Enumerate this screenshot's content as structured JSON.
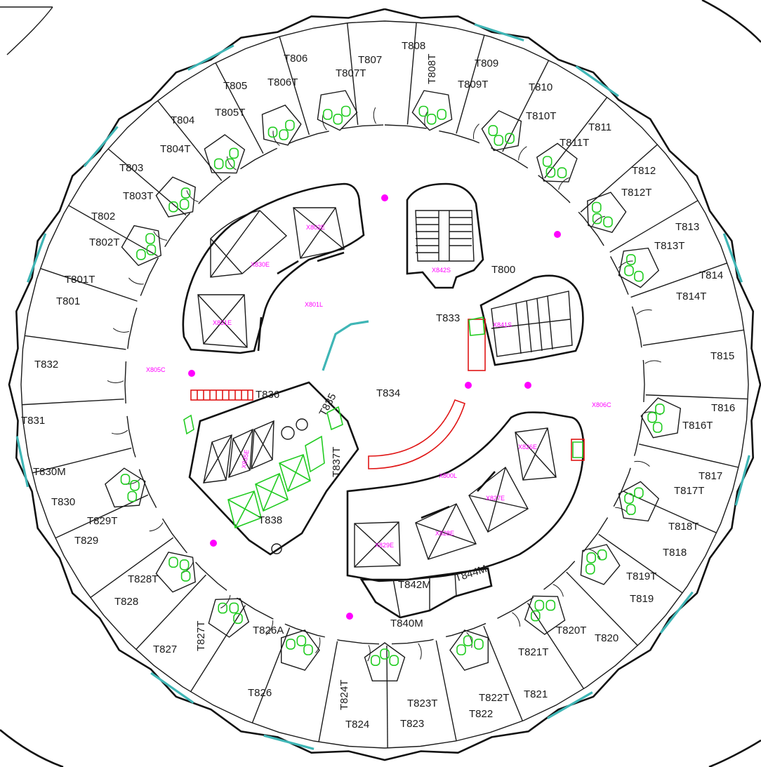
{
  "colors": {
    "wall": "#1a1a1a",
    "glass": "#3fb6b6",
    "fixture": "#22cc22",
    "accent": "#ff00ff",
    "red": "#e01515"
  },
  "rooms": {
    "outer": [
      {
        "label": "T801"
      },
      {
        "label": "T802"
      },
      {
        "label": "T803"
      },
      {
        "label": "T804"
      },
      {
        "label": "T805"
      },
      {
        "label": "T806"
      },
      {
        "label": "T807"
      },
      {
        "label": "T808"
      },
      {
        "label": "T809"
      },
      {
        "label": "T810"
      },
      {
        "label": "T811"
      },
      {
        "label": "T812"
      },
      {
        "label": "T813"
      },
      {
        "label": "T814"
      },
      {
        "label": "T815"
      },
      {
        "label": "T816"
      },
      {
        "label": "T817"
      },
      {
        "label": "T818"
      },
      {
        "label": "T819"
      },
      {
        "label": "T820"
      },
      {
        "label": "T821"
      },
      {
        "label": "T822"
      },
      {
        "label": "T823"
      },
      {
        "label": "T824"
      },
      {
        "label": "T826"
      },
      {
        "label": "T826A"
      },
      {
        "label": "T827"
      },
      {
        "label": "T828"
      },
      {
        "label": "T829"
      },
      {
        "label": "T830"
      },
      {
        "label": "T830M"
      },
      {
        "label": "T831"
      },
      {
        "label": "T832"
      }
    ],
    "toilets": [
      {
        "label": "T801T"
      },
      {
        "label": "T802T"
      },
      {
        "label": "T803T"
      },
      {
        "label": "T804T"
      },
      {
        "label": "T805T"
      },
      {
        "label": "T806T"
      },
      {
        "label": "T807T"
      },
      {
        "label": "T808T"
      },
      {
        "label": "T809T"
      },
      {
        "label": "T810T"
      },
      {
        "label": "T811T"
      },
      {
        "label": "T812T"
      },
      {
        "label": "T813T"
      },
      {
        "label": "T814T"
      },
      {
        "label": "T816T"
      },
      {
        "label": "T817T"
      },
      {
        "label": "T818T"
      },
      {
        "label": "T819T"
      },
      {
        "label": "T820T"
      },
      {
        "label": "T821T"
      },
      {
        "label": "T822T"
      },
      {
        "label": "T823T"
      },
      {
        "label": "T824T"
      },
      {
        "label": "T827T"
      },
      {
        "label": "T828T"
      },
      {
        "label": "T829T"
      }
    ],
    "core": [
      {
        "label": "T800"
      },
      {
        "label": "T833"
      },
      {
        "label": "T834"
      },
      {
        "label": "T835"
      },
      {
        "label": "T836"
      },
      {
        "label": "T837T"
      },
      {
        "label": "T838"
      },
      {
        "label": "T840M"
      },
      {
        "label": "T842M"
      },
      {
        "label": "T844M"
      }
    ],
    "codes": [
      {
        "label": "X802E"
      },
      {
        "label": "X830E"
      },
      {
        "label": "X801L"
      },
      {
        "label": "X831E"
      },
      {
        "label": "X842S"
      },
      {
        "label": "X841S"
      },
      {
        "label": "X805C"
      },
      {
        "label": "X806C"
      },
      {
        "label": "X800L"
      },
      {
        "label": "X826E"
      },
      {
        "label": "X827E"
      },
      {
        "label": "X828E"
      },
      {
        "label": "X829E"
      },
      {
        "label": "X835E"
      }
    ]
  }
}
